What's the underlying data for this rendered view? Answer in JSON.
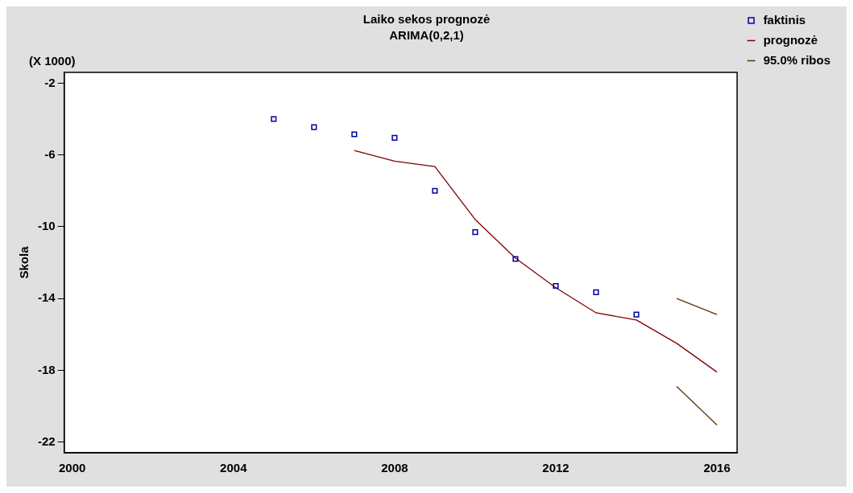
{
  "chart_data": {
    "type": "line",
    "title": "Laiko sekos prognozė",
    "subtitle": "ARIMA(0,2,1)",
    "ylabel": "Skola",
    "annotations": [
      "(X 1000)"
    ],
    "xlim": [
      1999.8,
      2016.5
    ],
    "xticks": [
      2000,
      2004,
      2008,
      2012,
      2016
    ],
    "ylim": [
      -22.6,
      -1.4
    ],
    "yticks": [
      -2,
      -6,
      -10,
      -14,
      -18,
      -22
    ],
    "grid": false,
    "legend": "right",
    "series": [
      {
        "name": "faktinis",
        "type": "scatter",
        "marker": "square",
        "color": "#0000a0",
        "x": [
          2005,
          2006,
          2007,
          2008,
          2009,
          2010,
          2011,
          2012,
          2013,
          2014
        ],
        "values": [
          -4.0,
          -4.45,
          -4.85,
          -5.05,
          -8.0,
          -10.3,
          -11.8,
          -13.3,
          -13.65,
          -14.9
        ]
      },
      {
        "name": "prognozė",
        "color": "#800000",
        "x": [
          2007,
          2008,
          2009,
          2010,
          2011,
          2012,
          2013,
          2014,
          2015,
          2016
        ],
        "values": [
          -5.75,
          -6.35,
          -6.65,
          -9.6,
          -11.75,
          -13.4,
          -14.8,
          -15.2,
          -16.5,
          -18.1
        ]
      },
      {
        "name": "95.0% ribos",
        "color": "#603000",
        "x": [
          2015,
          2016
        ],
        "values": [
          -14.0,
          -14.9
        ]
      },
      {
        "color": "#603000",
        "x": [
          2015,
          2016
        ],
        "values": [
          -18.9,
          -21.05
        ]
      }
    ]
  }
}
